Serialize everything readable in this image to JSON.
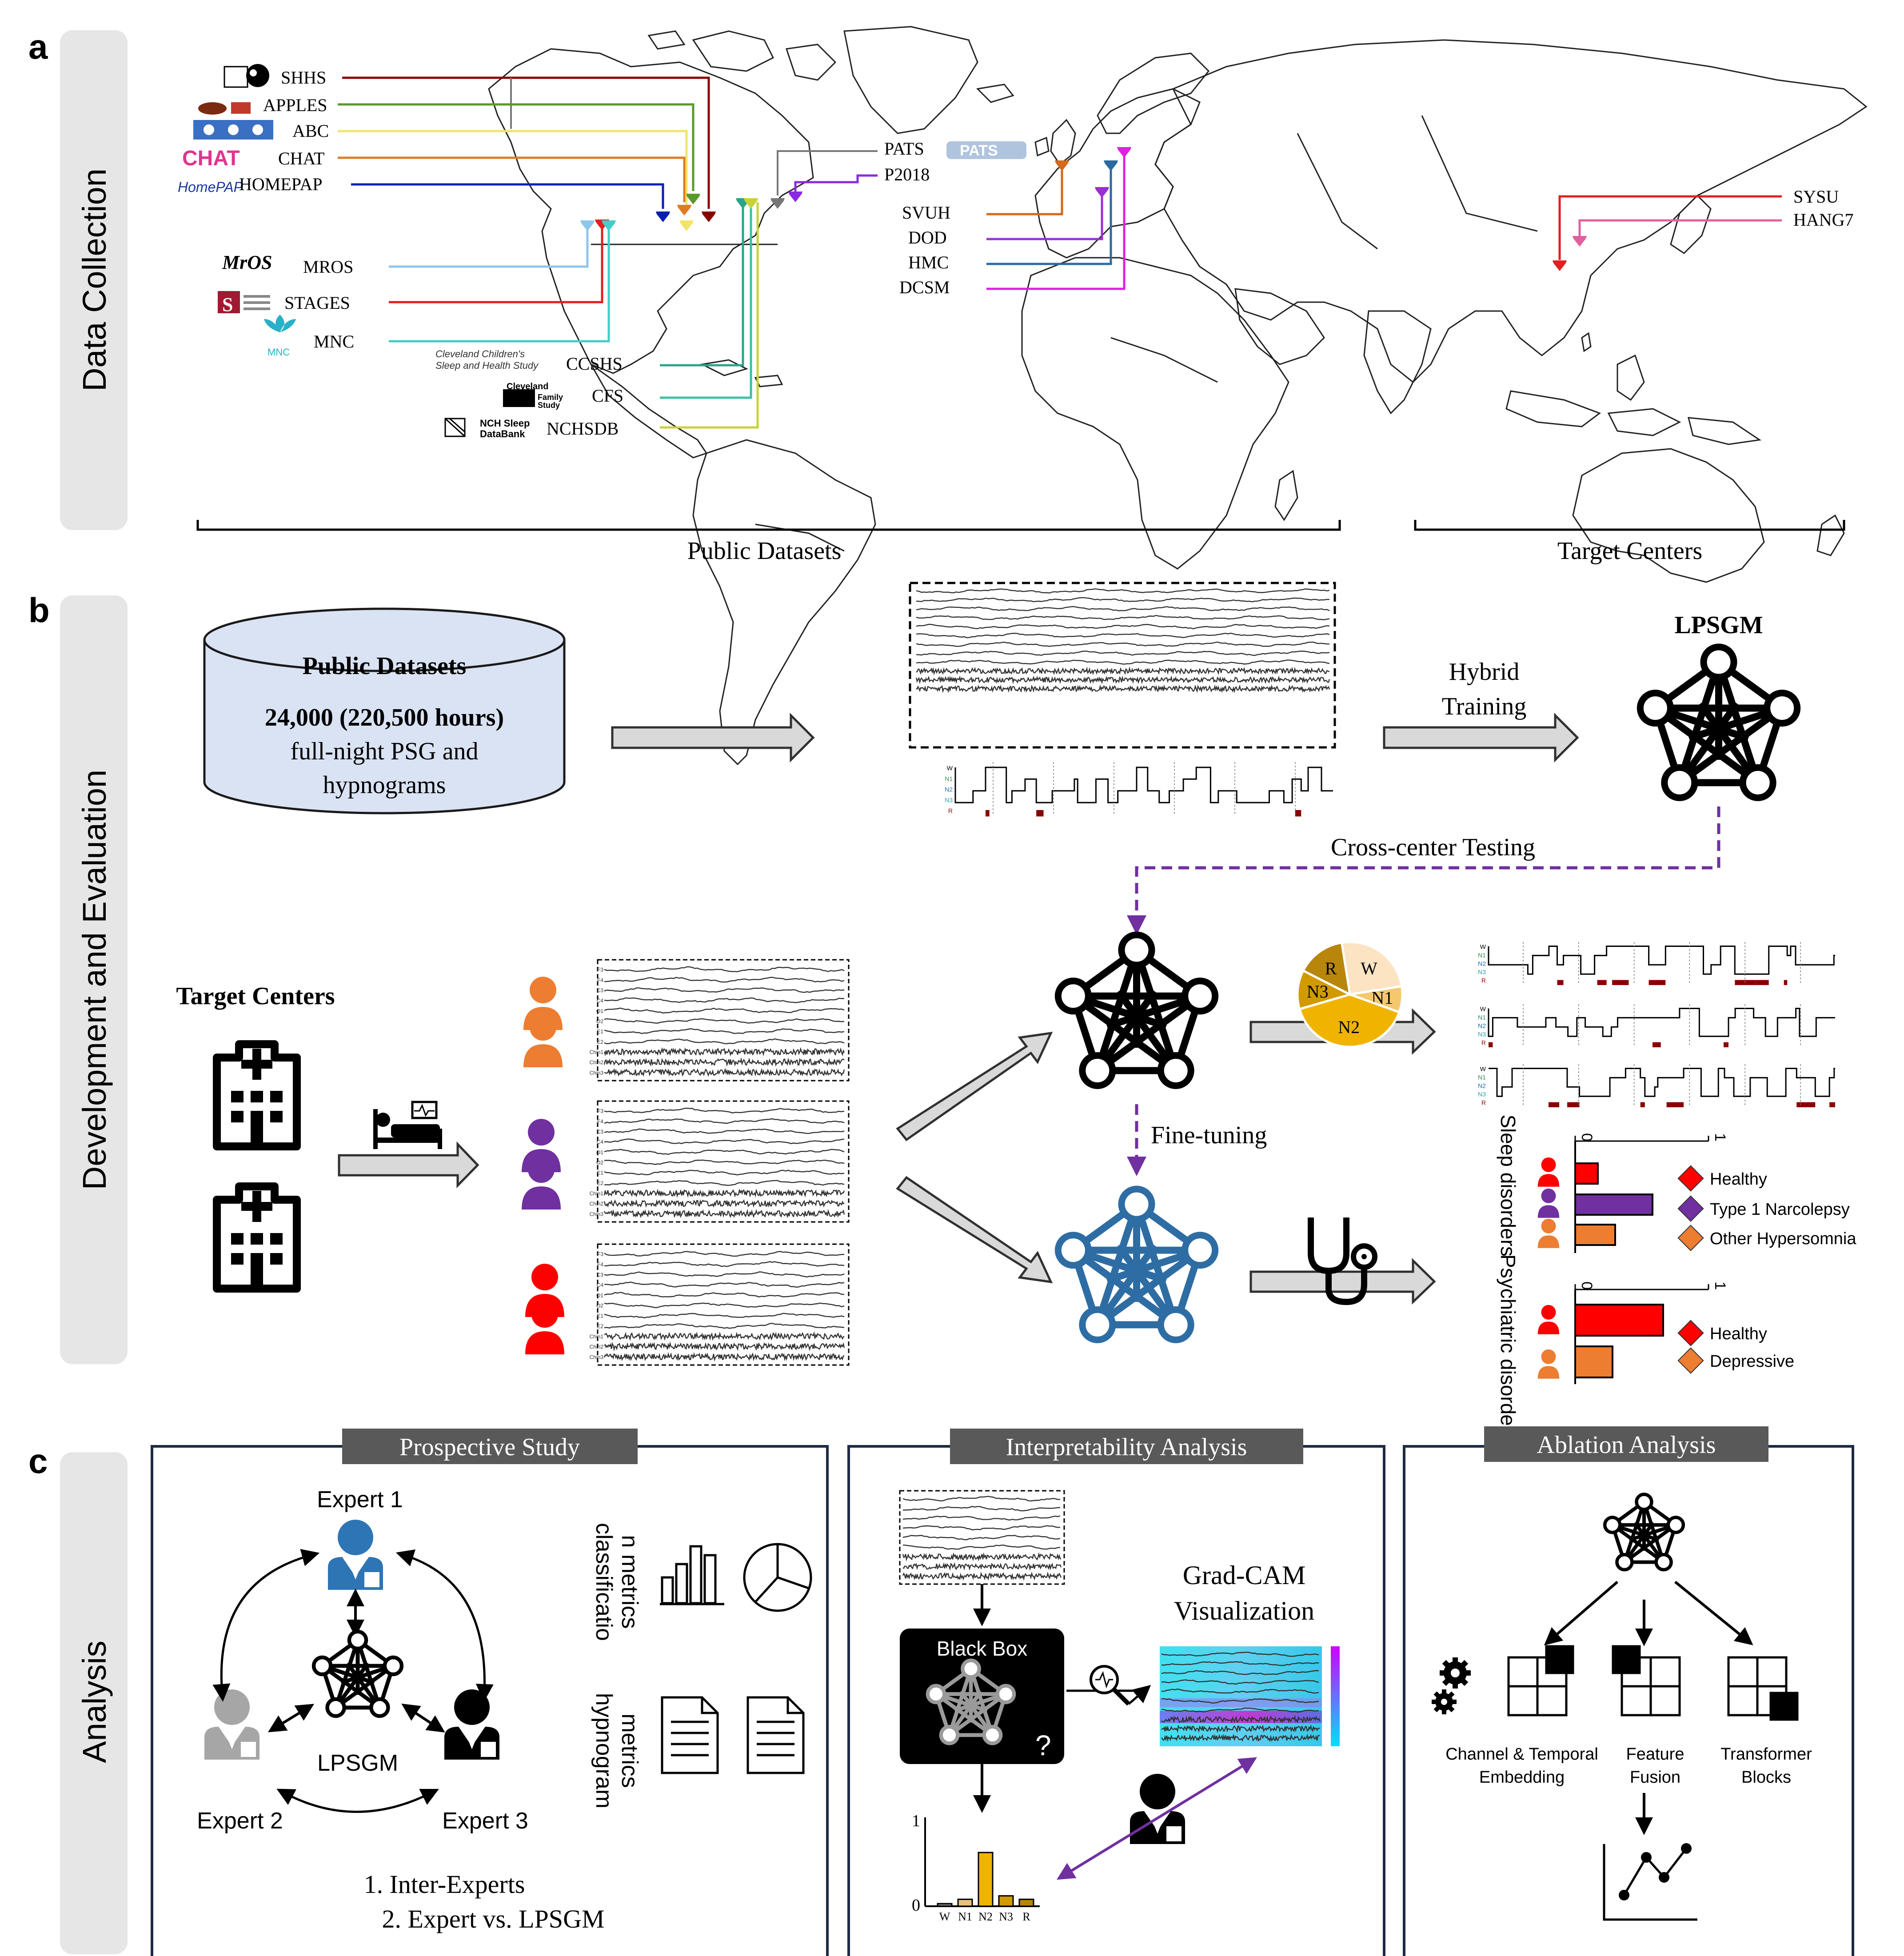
{
  "panel_a": {
    "letter": "a",
    "side_label": "Data Collection",
    "public_datasets_left": [
      {
        "name": "SHHS",
        "color": "#8b0000"
      },
      {
        "name": "APPLES",
        "color": "#5a9a2a"
      },
      {
        "name": "ABC",
        "color": "#f2e46a"
      },
      {
        "name": "CHAT",
        "color": "#e07b20"
      },
      {
        "name": "HOMEPAP",
        "color": "#0a1fb0"
      },
      {
        "name": "MROS",
        "color": "#8ec5ea"
      },
      {
        "name": "STAGES",
        "color": "#e02020"
      },
      {
        "name": "MNC",
        "color": "#3fd0c8"
      },
      {
        "name": "CCSHS",
        "color": "#2aa58a"
      },
      {
        "name": "CFS",
        "color": "#3ac0a0"
      },
      {
        "name": "NCHSDB",
        "color": "#c8d23a"
      }
    ],
    "public_datasets_right": [
      {
        "name": "PATS",
        "color": "#777777"
      },
      {
        "name": "P2018",
        "color": "#8a2be2"
      },
      {
        "name": "SVUH",
        "color": "#d2691e"
      },
      {
        "name": "DOD",
        "color": "#9a30d0"
      },
      {
        "name": "HMC",
        "color": "#2a6aa0"
      },
      {
        "name": "DCSM",
        "color": "#e020e0"
      }
    ],
    "target_datasets": [
      {
        "name": "SYSU",
        "color": "#e02020"
      },
      {
        "name": "HANG7",
        "color": "#e060a0"
      }
    ],
    "logo_texts": {
      "ccshs": "Cleveland Children's Sleep and Health Study",
      "cfs": "Cleveland Family Study",
      "nchsdb": "NCH Sleep DataBank",
      "mnc": "MNC",
      "homepap": "HomePAP",
      "chat": "CHAT",
      "pats": "PATS"
    },
    "bracket_public": "Public Datasets",
    "bracket_target": "Target Centers"
  },
  "panel_b": {
    "letter": "b",
    "side_label": "Development and Evaluation",
    "db_title": "Public Datasets",
    "db_line1": "24,000 (220,500 hours)",
    "db_line2": "full-night PSG  and",
    "db_line3": "hypnograms",
    "hybrid_1": "Hybrid",
    "hybrid_2": "Training",
    "model_name": "LPSGM",
    "cross_center": "Cross-center Testing",
    "target_centers": "Target Centers",
    "fine_tuning": "Fine-tuning",
    "pie": {
      "slices": [
        {
          "label": "W",
          "value": 25,
          "color": "#fce3c2"
        },
        {
          "label": "N1",
          "value": 8,
          "color": "#f5c86e"
        },
        {
          "label": "N2",
          "value": 40,
          "color": "#f0b400"
        },
        {
          "label": "N3",
          "value": 12,
          "color": "#d19a00"
        },
        {
          "label": "R",
          "value": 15,
          "color": "#b8860b"
        }
      ]
    },
    "eeg_channels": [
      "F3",
      "F4",
      "C3",
      "C4",
      "O1",
      "O2",
      "E1",
      "E2",
      "Chin1",
      "Chin2",
      "Chin3"
    ],
    "hyp_labels": [
      "W",
      "N1",
      "N2",
      "N3",
      "R"
    ],
    "sleep_axis": "Sleep disorders",
    "psych_axis": "Psychiatric disorders",
    "axis_min": "0",
    "axis_max": "1",
    "sleep_legend": [
      {
        "label": "Healthy",
        "color": "#ff0000"
      },
      {
        "label": "Type 1 Narcolepsy",
        "color": "#7030a0"
      },
      {
        "label": "Other Hypersomnia",
        "color": "#ed7d31"
      }
    ],
    "psych_legend": [
      {
        "label": "Healthy",
        "color": "#ff0000"
      },
      {
        "label": "Depressive",
        "color": "#ed7d31"
      }
    ],
    "chart_data": [
      {
        "type": "bar",
        "categories": [
          "Healthy",
          "Type 1 Narcolepsy",
          "Other Hypersomnia"
        ],
        "values": [
          0.17,
          0.58,
          0.3
        ],
        "xlim": [
          0,
          1
        ]
      },
      {
        "type": "bar",
        "categories": [
          "Healthy",
          "Depressive"
        ],
        "values": [
          0.66,
          0.28
        ],
        "xlim": [
          0,
          1
        ]
      }
    ]
  },
  "panel_c": {
    "letter": "c",
    "side_label": "Analysis",
    "prospective_title": "Prospective Study",
    "expert1": "Expert 1",
    "expert2": "Expert 2",
    "expert3": "Expert 3",
    "center_model": "LPSGM",
    "metrics_cls_1": "classificatio",
    "metrics_cls_2": "n metrics",
    "metrics_hyp_1": "hypnogram",
    "metrics_hyp_2": "metrics",
    "list_1": "1. Inter-Experts",
    "list_2": "2. Expert vs. LPSGM",
    "interp_title": "Interpretability Analysis",
    "black_box": "Black Box",
    "question": "?",
    "gradcam_1": "Grad-CAM",
    "gradcam_2": "Visualization",
    "interp_axis_max": "1",
    "interp_axis_min": "0",
    "chart_data": {
      "type": "bar",
      "categories": [
        "W",
        "N1",
        "N2",
        "N3",
        "R"
      ],
      "values": [
        0.03,
        0.08,
        0.62,
        0.12,
        0.08
      ],
      "ylim": [
        0,
        1
      ]
    },
    "ablation_title": "Ablation Analysis",
    "abl_1a": "Channel & Temporal",
    "abl_1b": "Embedding",
    "abl_2a": "Feature",
    "abl_2b": "Fusion",
    "abl_3a": "Transformer",
    "abl_3b": "Blocks"
  }
}
